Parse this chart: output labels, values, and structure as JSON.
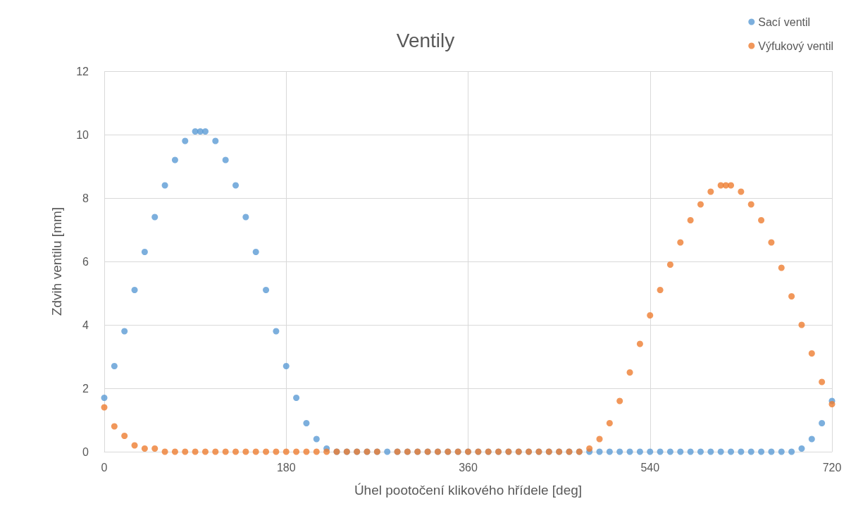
{
  "chart_data": {
    "type": "scatter",
    "title": "Ventily",
    "xlabel": "Úhel pootočení klikového hřídele [deg]",
    "ylabel": "Zdvih ventilu [mm]",
    "xlim": [
      0,
      720
    ],
    "xticks": [
      0,
      180,
      360,
      540,
      720
    ],
    "ylim": [
      0,
      12
    ],
    "yticks": [
      0,
      2,
      4,
      6,
      8,
      10,
      12
    ],
    "grid": true,
    "legend": "top right",
    "marker": "circle",
    "series": [
      {
        "name": "Sací ventil",
        "color": "#5b9bd5",
        "x": [
          0,
          10,
          20,
          30,
          40,
          50,
          60,
          70,
          80,
          90,
          95,
          100,
          110,
          120,
          130,
          140,
          150,
          160,
          170,
          180,
          190,
          200,
          210,
          220,
          230,
          240,
          250,
          260,
          270,
          280,
          290,
          300,
          310,
          320,
          330,
          340,
          350,
          360,
          370,
          380,
          390,
          400,
          410,
          420,
          430,
          440,
          450,
          460,
          470,
          480,
          490,
          500,
          510,
          520,
          530,
          540,
          550,
          560,
          570,
          580,
          590,
          600,
          610,
          620,
          630,
          640,
          650,
          660,
          670,
          680,
          690,
          700,
          710,
          720
        ],
        "values": [
          1.7,
          2.7,
          3.8,
          5.1,
          6.3,
          7.4,
          8.4,
          9.2,
          9.8,
          10.1,
          10.1,
          10.1,
          9.8,
          9.2,
          8.4,
          7.4,
          6.3,
          5.1,
          3.8,
          2.7,
          1.7,
          0.9,
          0.4,
          0.1,
          0,
          0,
          0,
          0,
          0,
          0,
          0,
          0,
          0,
          0,
          0,
          0,
          0,
          0,
          0,
          0,
          0,
          0,
          0,
          0,
          0,
          0,
          0,
          0,
          0,
          0,
          0,
          0,
          0,
          0,
          0,
          0,
          0,
          0,
          0,
          0,
          0,
          0,
          0,
          0,
          0,
          0,
          0,
          0,
          0,
          0,
          0.1,
          0.4,
          0.9,
          1.6
        ]
      },
      {
        "name": "Výfukový ventil",
        "color": "#ed7d31",
        "x": [
          0,
          10,
          20,
          30,
          40,
          50,
          60,
          70,
          80,
          90,
          100,
          110,
          120,
          130,
          140,
          150,
          160,
          170,
          180,
          190,
          200,
          210,
          220,
          230,
          240,
          250,
          260,
          270,
          280,
          290,
          300,
          310,
          320,
          330,
          340,
          350,
          360,
          370,
          380,
          390,
          400,
          410,
          420,
          430,
          440,
          450,
          460,
          470,
          480,
          490,
          500,
          510,
          520,
          530,
          540,
          550,
          560,
          570,
          580,
          590,
          600,
          610,
          615,
          620,
          630,
          640,
          650,
          660,
          670,
          680,
          690,
          700,
          710,
          720
        ],
        "values": [
          1.4,
          0.8,
          0.5,
          0.2,
          0.1,
          0.1,
          0,
          0,
          0,
          0,
          0,
          0,
          0,
          0,
          0,
          0,
          0,
          0,
          0,
          0,
          0,
          0,
          0,
          0,
          0,
          0,
          0,
          0,
          null,
          0,
          0,
          0,
          0,
          0,
          0,
          0,
          0,
          0,
          0,
          0,
          0,
          0,
          0,
          0,
          0,
          0,
          0,
          0,
          0.1,
          0.4,
          0.9,
          1.6,
          2.5,
          3.4,
          4.3,
          5.1,
          5.9,
          6.6,
          7.3,
          7.8,
          8.2,
          8.4,
          8.4,
          8.4,
          8.2,
          7.8,
          7.3,
          6.6,
          5.8,
          4.9,
          4.0,
          3.1,
          2.2,
          1.5
        ]
      }
    ]
  }
}
